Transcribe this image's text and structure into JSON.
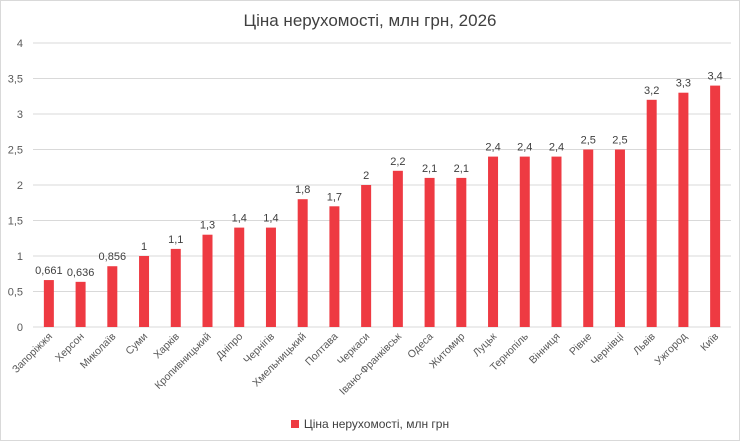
{
  "colors": {
    "bar": "#ee3a42",
    "grid": "#d9d9d9",
    "text": "#595959",
    "label": "#404040"
  },
  "chart_data": {
    "type": "bar",
    "title": "Ціна нерухомості, млн грн, 2026",
    "xlabel": "",
    "ylabel": "",
    "ylim": [
      0,
      4
    ],
    "y_ticks": [
      0,
      0.5,
      1,
      1.5,
      2,
      2.5,
      3,
      3.5,
      4
    ],
    "y_tick_labels": [
      "0",
      "0,5",
      "1",
      "1,5",
      "2",
      "2,5",
      "3",
      "3,5",
      "4"
    ],
    "grid": true,
    "legend_position": "bottom",
    "categories": [
      "Запоріжжя",
      "Херсон",
      "Миколаїв",
      "Суми",
      "Харків",
      "Кропивницький",
      "Дніпро",
      "Чернігів",
      "Хмельницький",
      "Полтава",
      "Черкаси",
      "Івано-Франківськ",
      "Одеса",
      "Житомир",
      "Луцьк",
      "Тернопіль",
      "Вінниця",
      "Рівне",
      "Чернівці",
      "Львів",
      "Ужгород",
      "Київ"
    ],
    "series": [
      {
        "name": "Ціна нерухомості, млн грн",
        "values": [
          0.661,
          0.636,
          0.856,
          1,
          1.1,
          1.3,
          1.4,
          1.4,
          1.8,
          1.7,
          2,
          2.2,
          2.1,
          2.1,
          2.4,
          2.4,
          2.4,
          2.5,
          2.5,
          3.2,
          3.3,
          3.4
        ],
        "labels": [
          "0,661",
          "0,636",
          "0,856",
          "1",
          "1,1",
          "1,3",
          "1,4",
          "1,4",
          "1,8",
          "1,7",
          "2",
          "2,2",
          "2,1",
          "2,1",
          "2,4",
          "2,4",
          "2,4",
          "2,5",
          "2,5",
          "3,2",
          "3,3",
          "3,4"
        ]
      }
    ]
  }
}
